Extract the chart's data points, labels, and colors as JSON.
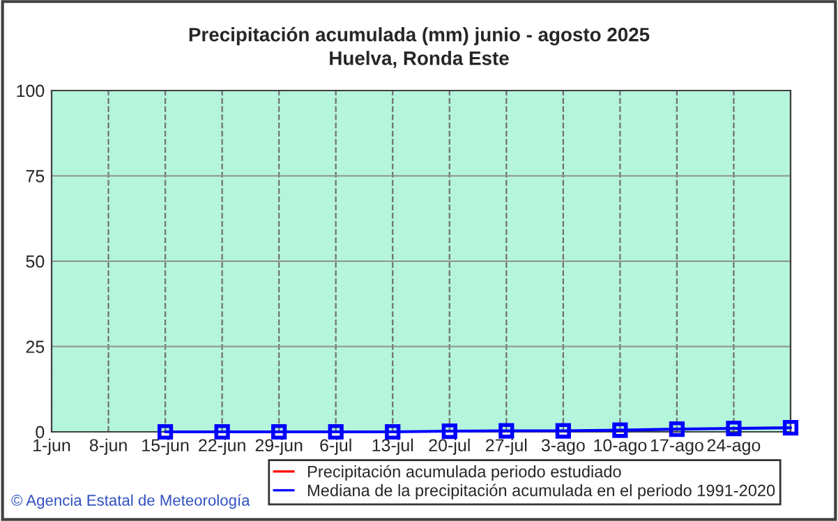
{
  "chart_data": {
    "type": "line",
    "title": "Precipitación acumulada (mm) junio - agosto 2025",
    "subtitle": "Huelva, Ronda Este",
    "categories": [
      "1-jun",
      "8-jun",
      "15-jun",
      "22-jun",
      "29-jun",
      "6-jul",
      "13-jul",
      "20-jul",
      "27-jul",
      "3-ago",
      "10-ago",
      "17-ago",
      "24-ago",
      null
    ],
    "series": [
      {
        "name": "Precipitación acumulada periodo estudiado",
        "color": "#ff0000",
        "values": [
          null,
          null,
          null,
          null,
          null,
          null,
          null,
          null,
          null,
          null,
          null,
          null,
          null,
          null
        ]
      },
      {
        "name": "Mediana de la precipitación acumulada en el periodo 1991-2020",
        "color": "#0000ff",
        "values": [
          null,
          null,
          0,
          0,
          0,
          0,
          0,
          0.2,
          0.3,
          0.3,
          0.5,
          0.8,
          1.0,
          1.2
        ]
      }
    ],
    "ylim": [
      0,
      100
    ],
    "yticks": [
      0,
      25,
      50,
      75,
      100
    ],
    "grid": true,
    "marker": "square",
    "line_style": "solid",
    "legend": "bottom",
    "annotations": [
      "© Agencia Estatal de Meteorología"
    ]
  }
}
